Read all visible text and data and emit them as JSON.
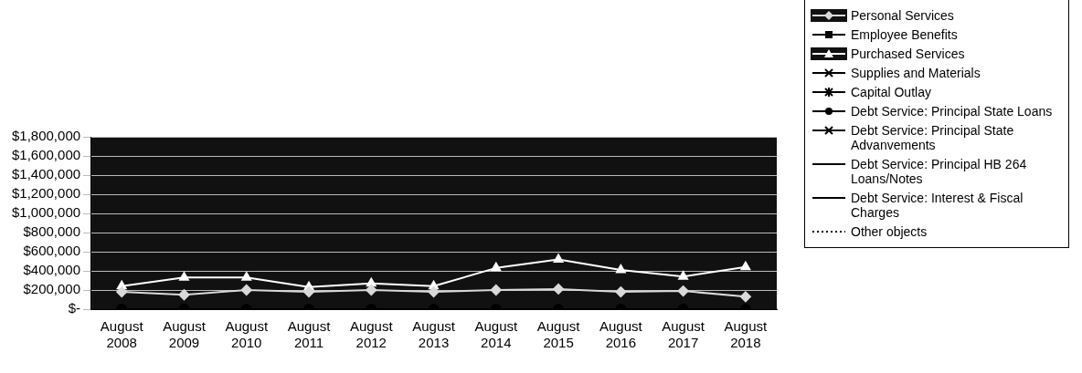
{
  "chart_data": {
    "type": "line",
    "categories": [
      "August 2008",
      "August 2009",
      "August 2010",
      "August 2011",
      "August 2012",
      "August 2013",
      "August 2014",
      "August 2015",
      "August 2016",
      "August 2017",
      "August 2018"
    ],
    "series": [
      {
        "name": "Personal Services",
        "color": "#d9d9d9",
        "marker": "diamond",
        "values": [
          180000,
          150000,
          200000,
          180000,
          200000,
          180000,
          200000,
          210000,
          180000,
          190000,
          130000
        ]
      },
      {
        "name": "Employee Benefits",
        "color": "#000000",
        "marker": "square",
        "values": [
          null,
          null,
          null,
          null,
          null,
          null,
          null,
          null,
          null,
          null,
          null
        ]
      },
      {
        "name": "Purchased Services",
        "color": "#ffffff",
        "marker": "triangle",
        "values": [
          240000,
          330000,
          330000,
          230000,
          270000,
          240000,
          430000,
          520000,
          410000,
          340000,
          440000
        ]
      },
      {
        "name": "Supplies and Materials",
        "color": "#000000",
        "marker": "cross",
        "values": [
          null,
          null,
          null,
          null,
          null,
          null,
          null,
          null,
          null,
          null,
          null
        ]
      },
      {
        "name": "Capital Outlay",
        "color": "#000000",
        "marker": "star",
        "values": [
          null,
          null,
          null,
          null,
          null,
          null,
          null,
          null,
          null,
          null,
          null
        ]
      },
      {
        "name": "Debt Service: Principal State Loans",
        "color": "#000000",
        "marker": "circle",
        "values": [
          0,
          0,
          0,
          0,
          0,
          0,
          0,
          0,
          0,
          0,
          0
        ]
      },
      {
        "name": "Debt Service: Principal State Advanvements",
        "color": "#000000",
        "marker": "cross",
        "values": [
          null,
          null,
          null,
          null,
          null,
          null,
          null,
          null,
          null,
          null,
          null
        ]
      },
      {
        "name": "Debt Service: Principal HB 264 Loans/Notes",
        "color": "#000000",
        "marker": "none",
        "values": [
          null,
          null,
          null,
          null,
          null,
          null,
          null,
          null,
          null,
          null,
          null
        ]
      },
      {
        "name": "Debt Service: Interest & Fiscal Charges",
        "color": "#000000",
        "marker": "none",
        "values": [
          null,
          null,
          null,
          null,
          null,
          null,
          null,
          null,
          null,
          null,
          null
        ]
      },
      {
        "name": "Other objects",
        "color": "#000000",
        "marker": "none",
        "line_style": "dotted",
        "values": [
          null,
          null,
          null,
          null,
          null,
          null,
          null,
          null,
          null,
          null,
          null
        ]
      }
    ],
    "ylim": [
      0,
      1800000
    ],
    "yticks": [
      {
        "value": 0,
        "label": "$-"
      },
      {
        "value": 200000,
        "label": "$200,000"
      },
      {
        "value": 400000,
        "label": "$400,000"
      },
      {
        "value": 600000,
        "label": "$600,000"
      },
      {
        "value": 800000,
        "label": "$800,000"
      },
      {
        "value": 1000000,
        "label": "$1,000,000"
      },
      {
        "value": 1200000,
        "label": "$1,200,000"
      },
      {
        "value": 1400000,
        "label": "$1,400,000"
      },
      {
        "value": 1600000,
        "label": "$1,600,000"
      },
      {
        "value": 1800000,
        "label": "$1,800,000"
      }
    ],
    "grid": "y",
    "legend": "right"
  }
}
